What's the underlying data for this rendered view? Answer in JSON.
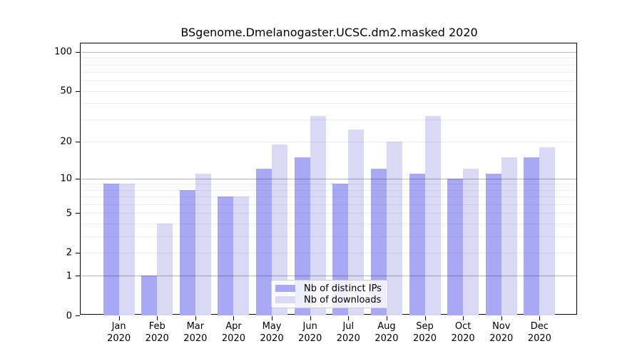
{
  "title": "BSgenome.Dmelanogaster.UCSC.dm2.masked 2020",
  "chart_data": {
    "type": "bar",
    "title": "BSgenome.Dmelanogaster.UCSC.dm2.masked 2020",
    "year_label": "2020",
    "categories": [
      "Jan",
      "Feb",
      "Mar",
      "Apr",
      "May",
      "Jun",
      "Jul",
      "Aug",
      "Sep",
      "Oct",
      "Nov",
      "Dec"
    ],
    "series": [
      {
        "name": "Nb of distinct IPs",
        "color": "#a8a8f5",
        "values": [
          9,
          1,
          8,
          7,
          12,
          15,
          9,
          12,
          11,
          10,
          11,
          15
        ]
      },
      {
        "name": "Nb of downloads",
        "color": "#d9d9f6",
        "values": [
          9,
          4,
          11,
          7,
          19,
          32,
          25,
          20,
          32,
          12,
          15,
          18
        ]
      }
    ],
    "yscale": "log1p",
    "ylim": [
      0,
      116
    ],
    "y_tick_labels": [
      "100",
      "50",
      "20",
      "10",
      "5",
      "2",
      "1",
      "0"
    ],
    "y_tick_values": [
      100,
      50,
      20,
      10,
      5,
      2,
      1,
      0
    ],
    "grid_major_values": [
      1,
      10,
      100
    ],
    "grid_minor_values": [
      2,
      3,
      4,
      5,
      6,
      7,
      8,
      9,
      20,
      30,
      40,
      50,
      60,
      70,
      80,
      90
    ],
    "grid": true,
    "legend_position": "lower center",
    "xlabel": "",
    "ylabel": ""
  }
}
